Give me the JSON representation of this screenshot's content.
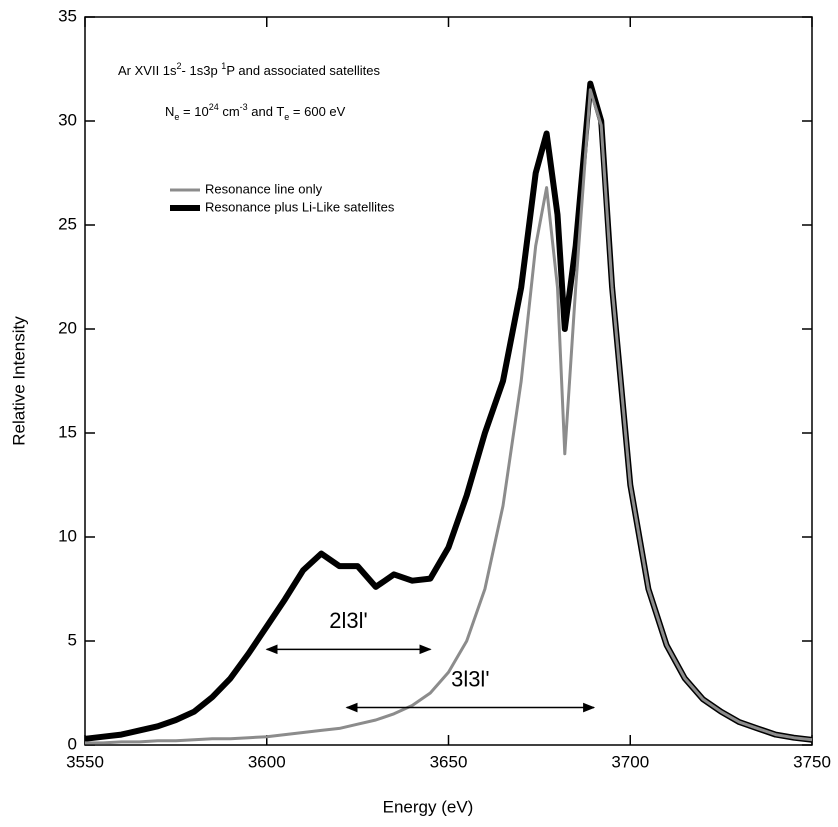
{
  "chart_data": {
    "type": "line",
    "text_lines": [
      [
        {
          "text": "Ar XVII 1s"
        },
        {
          "text": "2",
          "script": "super"
        },
        {
          "text": "- 1s3p "
        },
        {
          "text": "1",
          "script": "super"
        },
        {
          "text": "P and associated satellites"
        }
      ],
      [
        {
          "text": "N"
        },
        {
          "text": "e",
          "script": "sub"
        },
        {
          "text": " = 10"
        },
        {
          "text": "24",
          "script": "super"
        },
        {
          "text": " cm"
        },
        {
          "text": "-3",
          "script": "super"
        },
        {
          "text": " and T"
        },
        {
          "text": "e",
          "script": "sub"
        },
        {
          "text": " = 600 eV"
        }
      ]
    ],
    "x_label": "Energy (eV)",
    "y_label": "Relative Intensity",
    "x": [
      3550,
      3555,
      3560,
      3565,
      3570,
      3575,
      3580,
      3585,
      3590,
      3595,
      3600,
      3605,
      3610,
      3615,
      3620,
      3625,
      3630,
      3635,
      3640,
      3645,
      3650,
      3655,
      3660,
      3665,
      3670,
      3674,
      3677,
      3680,
      3682,
      3685,
      3689,
      3692,
      3695,
      3700,
      3705,
      3710,
      3715,
      3720,
      3725,
      3730,
      3735,
      3740,
      3745,
      3750
    ],
    "series": [
      {
        "name": "Resonance line only",
        "color": "#8c8c8c",
        "width": 3,
        "values": [
          0.1,
          0.1,
          0.15,
          0.15,
          0.2,
          0.2,
          0.25,
          0.3,
          0.3,
          0.35,
          0.4,
          0.5,
          0.6,
          0.7,
          0.8,
          1.0,
          1.2,
          1.5,
          1.9,
          2.5,
          3.5,
          5.0,
          7.5,
          11.5,
          17.5,
          24.0,
          26.8,
          22.0,
          14.0,
          22.0,
          31.5,
          29.8,
          22.0,
          12.5,
          7.5,
          4.8,
          3.2,
          2.2,
          1.6,
          1.1,
          0.8,
          0.5,
          0.35,
          0.25
        ]
      },
      {
        "name": "Resonance plus Li-Like satellites",
        "color": "#000000",
        "width": 6,
        "values": [
          0.3,
          0.4,
          0.5,
          0.7,
          0.9,
          1.2,
          1.6,
          2.3,
          3.2,
          4.4,
          5.7,
          7.0,
          8.4,
          9.2,
          8.6,
          8.6,
          7.6,
          8.2,
          7.9,
          8.0,
          9.5,
          12.0,
          15.0,
          17.5,
          22.0,
          27.5,
          29.4,
          25.5,
          20.0,
          24.0,
          31.8,
          30.0,
          22.0,
          12.5,
          7.5,
          4.8,
          3.2,
          2.2,
          1.6,
          1.1,
          0.8,
          0.5,
          0.35,
          0.25
        ]
      }
    ],
    "annotations": [
      {
        "text": "2l3l'",
        "x": [
          3600,
          3645
        ],
        "y": 4.6
      },
      {
        "text": "3l3l'",
        "x": [
          3622,
          3690
        ],
        "y": 1.8
      }
    ],
    "xlim": [
      3550,
      3750
    ],
    "xticks": [
      3550,
      3600,
      3650,
      3700,
      3750
    ],
    "ylim": [
      0,
      35
    ],
    "yticks": [
      0,
      5,
      10,
      15,
      20,
      25,
      30,
      35
    ],
    "legend": "upper left"
  }
}
